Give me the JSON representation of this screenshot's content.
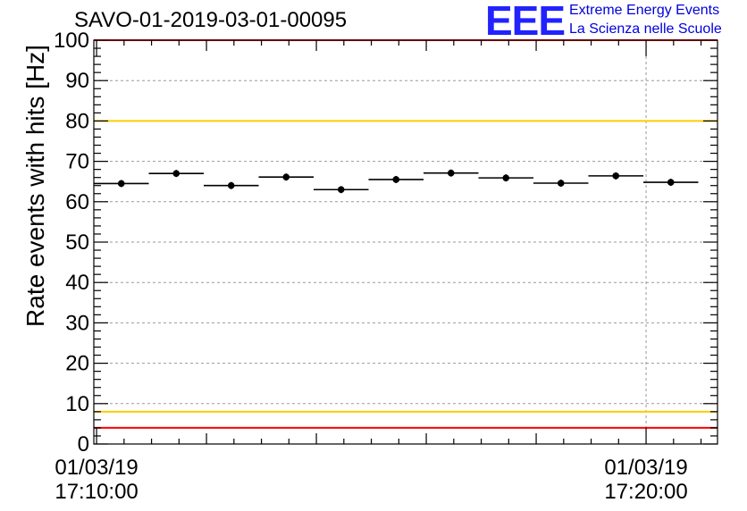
{
  "header": {
    "run_title": "SAVO-01-2019-03-01-00095",
    "logo_mark": "EEE",
    "logo_line1": "Extreme Energy Events",
    "logo_line2": "La Scienza nelle Scuole"
  },
  "colors": {
    "logo": "#2222ff",
    "red_threshold": "#ff0000",
    "yellow_threshold": "#ffcc00",
    "grid": "#999999",
    "data": "#000000"
  },
  "chart_data": {
    "type": "scatter",
    "title": "SAVO-01-2019-03-01-00095",
    "xlabel": "",
    "ylabel": "Rate events with hits [Hz]",
    "ylim": [
      0,
      100
    ],
    "y_ticks": [
      0,
      10,
      20,
      30,
      40,
      50,
      60,
      70,
      80,
      90,
      100
    ],
    "x_ticks": [
      {
        "date": "01/03/19",
        "time": "17:10:00",
        "minutes": 0
      },
      {
        "date": "01/03/19",
        "time": "17:20:00",
        "minutes": 10
      }
    ],
    "xlim_minutes": [
      -0.05,
      11.3
    ],
    "series": [
      {
        "name": "rate",
        "bin_width_minutes": 1.0,
        "x_minutes": [
          0.45,
          1.45,
          2.45,
          3.45,
          4.45,
          5.45,
          6.45,
          7.45,
          8.45,
          9.45,
          10.45
        ],
        "values": [
          64.5,
          67.0,
          64.0,
          66.1,
          63.0,
          65.5,
          67.1,
          65.9,
          64.6,
          66.4,
          64.8
        ]
      }
    ],
    "threshold_lines": [
      {
        "name": "upper-red",
        "value": 100,
        "color": "red"
      },
      {
        "name": "upper-yellow",
        "value": 80,
        "color": "yellow"
      },
      {
        "name": "lower-yellow",
        "value": 8,
        "color": "yellow"
      },
      {
        "name": "lower-red",
        "value": 4,
        "color": "red"
      }
    ]
  }
}
